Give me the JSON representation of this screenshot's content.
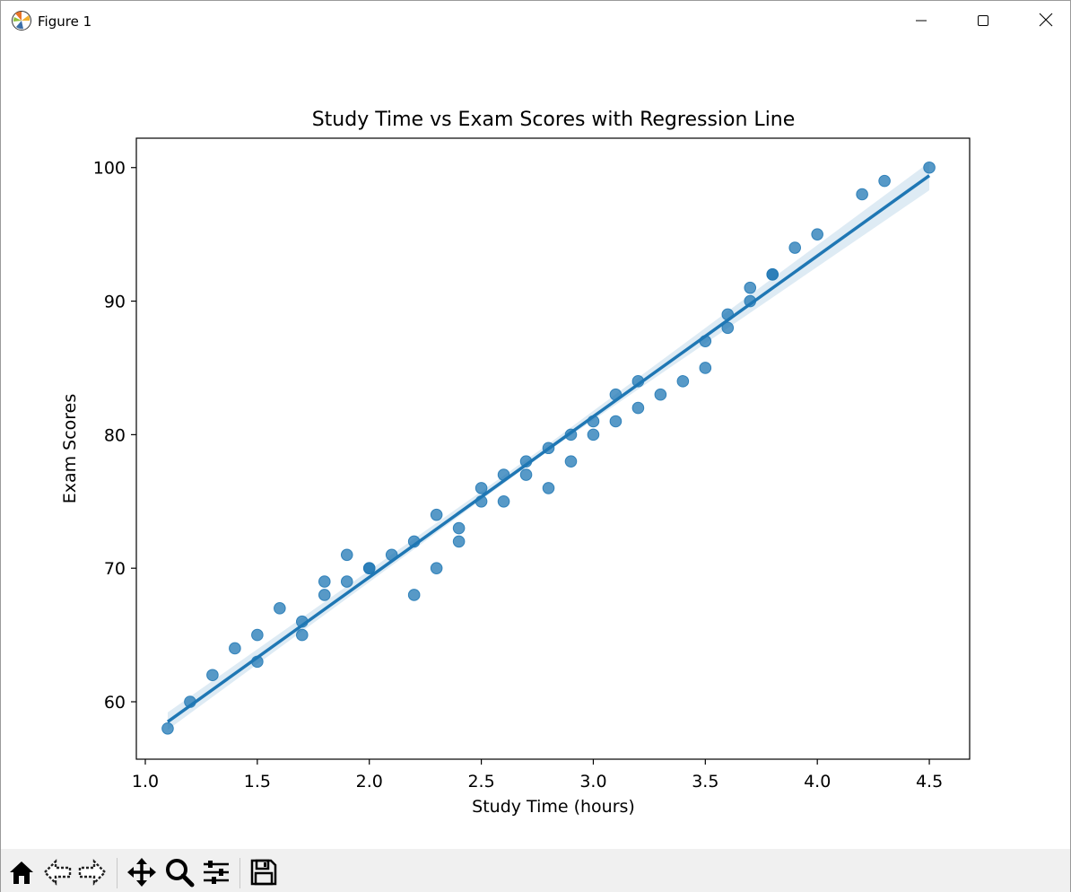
{
  "window": {
    "title": "Figure 1",
    "app_icon": "matplotlib-logo-icon",
    "controls": [
      "minimize-icon",
      "maximize-icon",
      "close-icon"
    ]
  },
  "toolbar": {
    "buttons": [
      "home-icon",
      "back-arrow-icon",
      "forward-arrow-icon",
      "pan-move-icon",
      "zoom-magnifier-icon",
      "configure-subplots-icon",
      "save-floppy-icon"
    ]
  },
  "chart_data": {
    "type": "scatter",
    "title": "Study Time vs Exam Scores with Regression Line",
    "xlabel": "Study Time (hours)",
    "ylabel": "Exam Scores",
    "xlim": [
      0.96,
      4.68
    ],
    "ylim": [
      55.7,
      102.2
    ],
    "xticks": [
      1.0,
      1.5,
      2.0,
      2.5,
      3.0,
      3.5,
      4.0,
      4.5
    ],
    "xtick_labels": [
      "1.0",
      "1.5",
      "2.0",
      "2.5",
      "3.0",
      "3.5",
      "4.0",
      "4.5"
    ],
    "yticks": [
      60,
      70,
      80,
      90,
      100
    ],
    "ytick_labels": [
      "60",
      "70",
      "80",
      "90",
      "100"
    ],
    "grid": false,
    "point_color": "#1f77b4",
    "line_color": "#1f77b4",
    "band_color": "#1f77b4",
    "points": [
      {
        "x": 1.1,
        "y": 58
      },
      {
        "x": 1.2,
        "y": 60
      },
      {
        "x": 1.3,
        "y": 62
      },
      {
        "x": 1.4,
        "y": 64
      },
      {
        "x": 1.5,
        "y": 65
      },
      {
        "x": 1.5,
        "y": 63
      },
      {
        "x": 1.6,
        "y": 67
      },
      {
        "x": 1.7,
        "y": 66
      },
      {
        "x": 1.7,
        "y": 65
      },
      {
        "x": 1.8,
        "y": 69
      },
      {
        "x": 1.8,
        "y": 68
      },
      {
        "x": 1.9,
        "y": 71
      },
      {
        "x": 1.9,
        "y": 69
      },
      {
        "x": 2.0,
        "y": 70
      },
      {
        "x": 2.0,
        "y": 70
      },
      {
        "x": 2.1,
        "y": 71
      },
      {
        "x": 2.2,
        "y": 72
      },
      {
        "x": 2.2,
        "y": 68
      },
      {
        "x": 2.3,
        "y": 74
      },
      {
        "x": 2.3,
        "y": 70
      },
      {
        "x": 2.4,
        "y": 73
      },
      {
        "x": 2.4,
        "y": 72
      },
      {
        "x": 2.5,
        "y": 76
      },
      {
        "x": 2.5,
        "y": 75
      },
      {
        "x": 2.6,
        "y": 77
      },
      {
        "x": 2.6,
        "y": 75
      },
      {
        "x": 2.7,
        "y": 78
      },
      {
        "x": 2.7,
        "y": 77
      },
      {
        "x": 2.8,
        "y": 79
      },
      {
        "x": 2.8,
        "y": 76
      },
      {
        "x": 2.9,
        "y": 80
      },
      {
        "x": 2.9,
        "y": 78
      },
      {
        "x": 3.0,
        "y": 81
      },
      {
        "x": 3.0,
        "y": 80
      },
      {
        "x": 3.1,
        "y": 83
      },
      {
        "x": 3.1,
        "y": 81
      },
      {
        "x": 3.2,
        "y": 84
      },
      {
        "x": 3.2,
        "y": 82
      },
      {
        "x": 3.3,
        "y": 83
      },
      {
        "x": 3.4,
        "y": 84
      },
      {
        "x": 3.5,
        "y": 87
      },
      {
        "x": 3.5,
        "y": 85
      },
      {
        "x": 3.6,
        "y": 89
      },
      {
        "x": 3.6,
        "y": 88
      },
      {
        "x": 3.7,
        "y": 91
      },
      {
        "x": 3.7,
        "y": 90
      },
      {
        "x": 3.8,
        "y": 92
      },
      {
        "x": 3.8,
        "y": 92
      },
      {
        "x": 3.9,
        "y": 94
      },
      {
        "x": 4.0,
        "y": 95
      },
      {
        "x": 4.2,
        "y": 98
      },
      {
        "x": 4.3,
        "y": 99
      },
      {
        "x": 4.5,
        "y": 100
      }
    ],
    "regression_line": {
      "x": [
        1.1,
        4.5
      ],
      "y": [
        58.5,
        99.4
      ]
    },
    "confidence_band": {
      "x": [
        1.1,
        2.8,
        4.5
      ],
      "lower": [
        57.9,
        78.8,
        98.3
      ],
      "upper": [
        59.2,
        79.3,
        100.4
      ]
    }
  }
}
